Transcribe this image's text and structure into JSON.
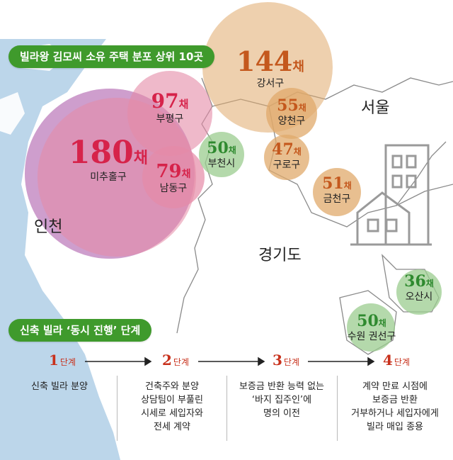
{
  "title": "빌라왕 김모씨 소유 주택 분포 상위 10곳",
  "unit": "채",
  "regions": {
    "seoul": "서울",
    "incheon": "인천",
    "gyeonggi": "경기도"
  },
  "districts": [
    {
      "name": "강서구",
      "count": 144
    },
    {
      "name": "미추홀구",
      "count": 180
    },
    {
      "name": "부평구",
      "count": 97
    },
    {
      "name": "남동구",
      "count": 79
    },
    {
      "name": "부천시",
      "count": 50
    },
    {
      "name": "양천구",
      "count": 55
    },
    {
      "name": "구로구",
      "count": 47
    },
    {
      "name": "금천구",
      "count": 51
    },
    {
      "name": "오산시",
      "count": 36
    },
    {
      "name": "수원 권선구",
      "count": 50
    }
  ],
  "process": {
    "title": "신축 빌라 ‘동시 진행’ 단계",
    "step_suffix": "단계",
    "steps": [
      {
        "num": "1",
        "text": "신축 빌라 분양"
      },
      {
        "num": "2",
        "text": "건축주와 분양\n상담팀이 부풀린\n시세로 세입자와\n전세 계약"
      },
      {
        "num": "3",
        "text": "보증금 반환 능력 없는\n‘바지 집주인’에\n명의 이전"
      },
      {
        "num": "4",
        "text": "계약 만료 시점에\n보증금 반환\n거부하거나 세입자에게\n빌라 매입 종용"
      }
    ]
  },
  "colors": {
    "sea": "#bcd6ea",
    "incheon_bubble": "#e58aa6",
    "incheon_text": "#d6234a",
    "seoul_bubble": "#e0a96b",
    "seoul_text": "#c4581d",
    "gyeonggi_bubble": "#9bcc8f",
    "gyeonggi_text": "#2f8a2f",
    "pill": "#3f9a2c",
    "step": "#c8311c"
  }
}
